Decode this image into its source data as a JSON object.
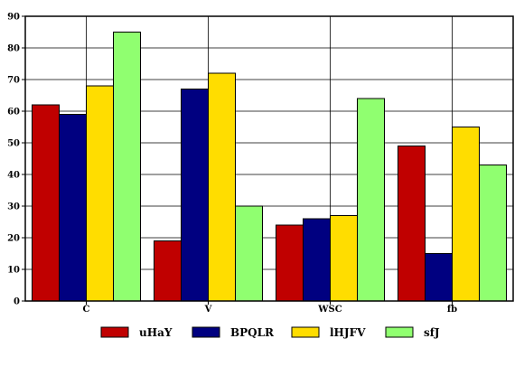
{
  "chart_data": {
    "type": "bar",
    "title": "",
    "xlabel": "",
    "ylabel": "",
    "categories": [
      "C",
      "V",
      "WSC",
      "fb"
    ],
    "ylim": [
      0,
      90
    ],
    "yticks": [
      0,
      10,
      20,
      30,
      40,
      50,
      60,
      70,
      80,
      90
    ],
    "grid": true,
    "legend_position": "bottom",
    "series": [
      {
        "name": "uHaY",
        "color": "#c00000",
        "values": [
          62,
          19,
          24,
          49
        ]
      },
      {
        "name": "BPQLR",
        "color": "#000080",
        "values": [
          59,
          67,
          26,
          15
        ]
      },
      {
        "name": "lHJFV",
        "color": "#ffdd00",
        "values": [
          68,
          72,
          27,
          55
        ]
      },
      {
        "name": "sfJ",
        "color": "#90ff70",
        "values": [
          85,
          30,
          64,
          43
        ]
      }
    ]
  }
}
